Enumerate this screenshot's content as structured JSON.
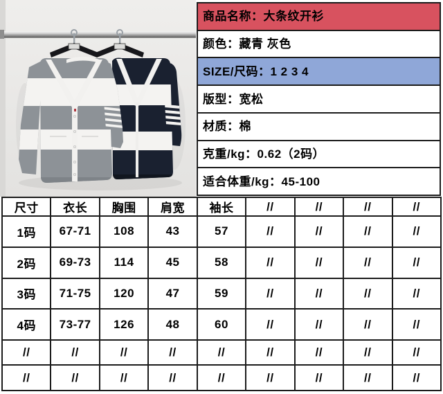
{
  "photo": {
    "description": "two striped v-neck cardigans hanging on a chrome rail, gray-white striped on left, navy-white striped on right",
    "colors": {
      "wall": "#ecebe9",
      "rail": "#b5b5b5",
      "hanger": "#17171b",
      "cardigan_left_gray": "#8d9297",
      "cardigan_right_navy": "#1a2130",
      "stripe_white": "#f4f3f1",
      "button_thread_red": "#b23a42"
    }
  },
  "info_panel": {
    "rows": [
      {
        "id": "product-name",
        "text": "商品名称：大条纹开衫",
        "bg": "#d8525f"
      },
      {
        "id": "color",
        "text": "颜色：藏青 灰色",
        "bg": "#ffffff"
      },
      {
        "id": "size",
        "text": "SIZE/尺码：1 2 3 4",
        "bg": "#8fa7d8"
      },
      {
        "id": "fit",
        "text": "版型：宽松",
        "bg": "#ffffff"
      },
      {
        "id": "material",
        "text": "材质：棉",
        "bg": "#ffffff"
      },
      {
        "id": "weight",
        "text": "克重/kg：0.62（2码）",
        "bg": "#ffffff"
      },
      {
        "id": "suitable-weight",
        "text": "适合体重/kg：45-100",
        "bg": "#ffffff"
      }
    ]
  },
  "size_table": {
    "headers": [
      "尺寸",
      "衣长",
      "胸围",
      "肩宽",
      "袖长",
      "//",
      "//",
      "//",
      "//"
    ],
    "rows": [
      [
        "1码",
        "67-71",
        "108",
        "43",
        "57",
        "//",
        "//",
        "//",
        "//"
      ],
      [
        "2码",
        "69-73",
        "114",
        "45",
        "58",
        "//",
        "//",
        "//",
        "//"
      ],
      [
        "3码",
        "71-75",
        "120",
        "47",
        "59",
        "//",
        "//",
        "//",
        "//"
      ],
      [
        "4码",
        "73-77",
        "126",
        "48",
        "60",
        "//",
        "//",
        "//",
        "//"
      ],
      [
        "//",
        "//",
        "//",
        "//",
        "//",
        "//",
        "//",
        "//",
        "//"
      ],
      [
        "//",
        "//",
        "//",
        "//",
        "//",
        "//",
        "//",
        "//",
        "//"
      ]
    ]
  }
}
